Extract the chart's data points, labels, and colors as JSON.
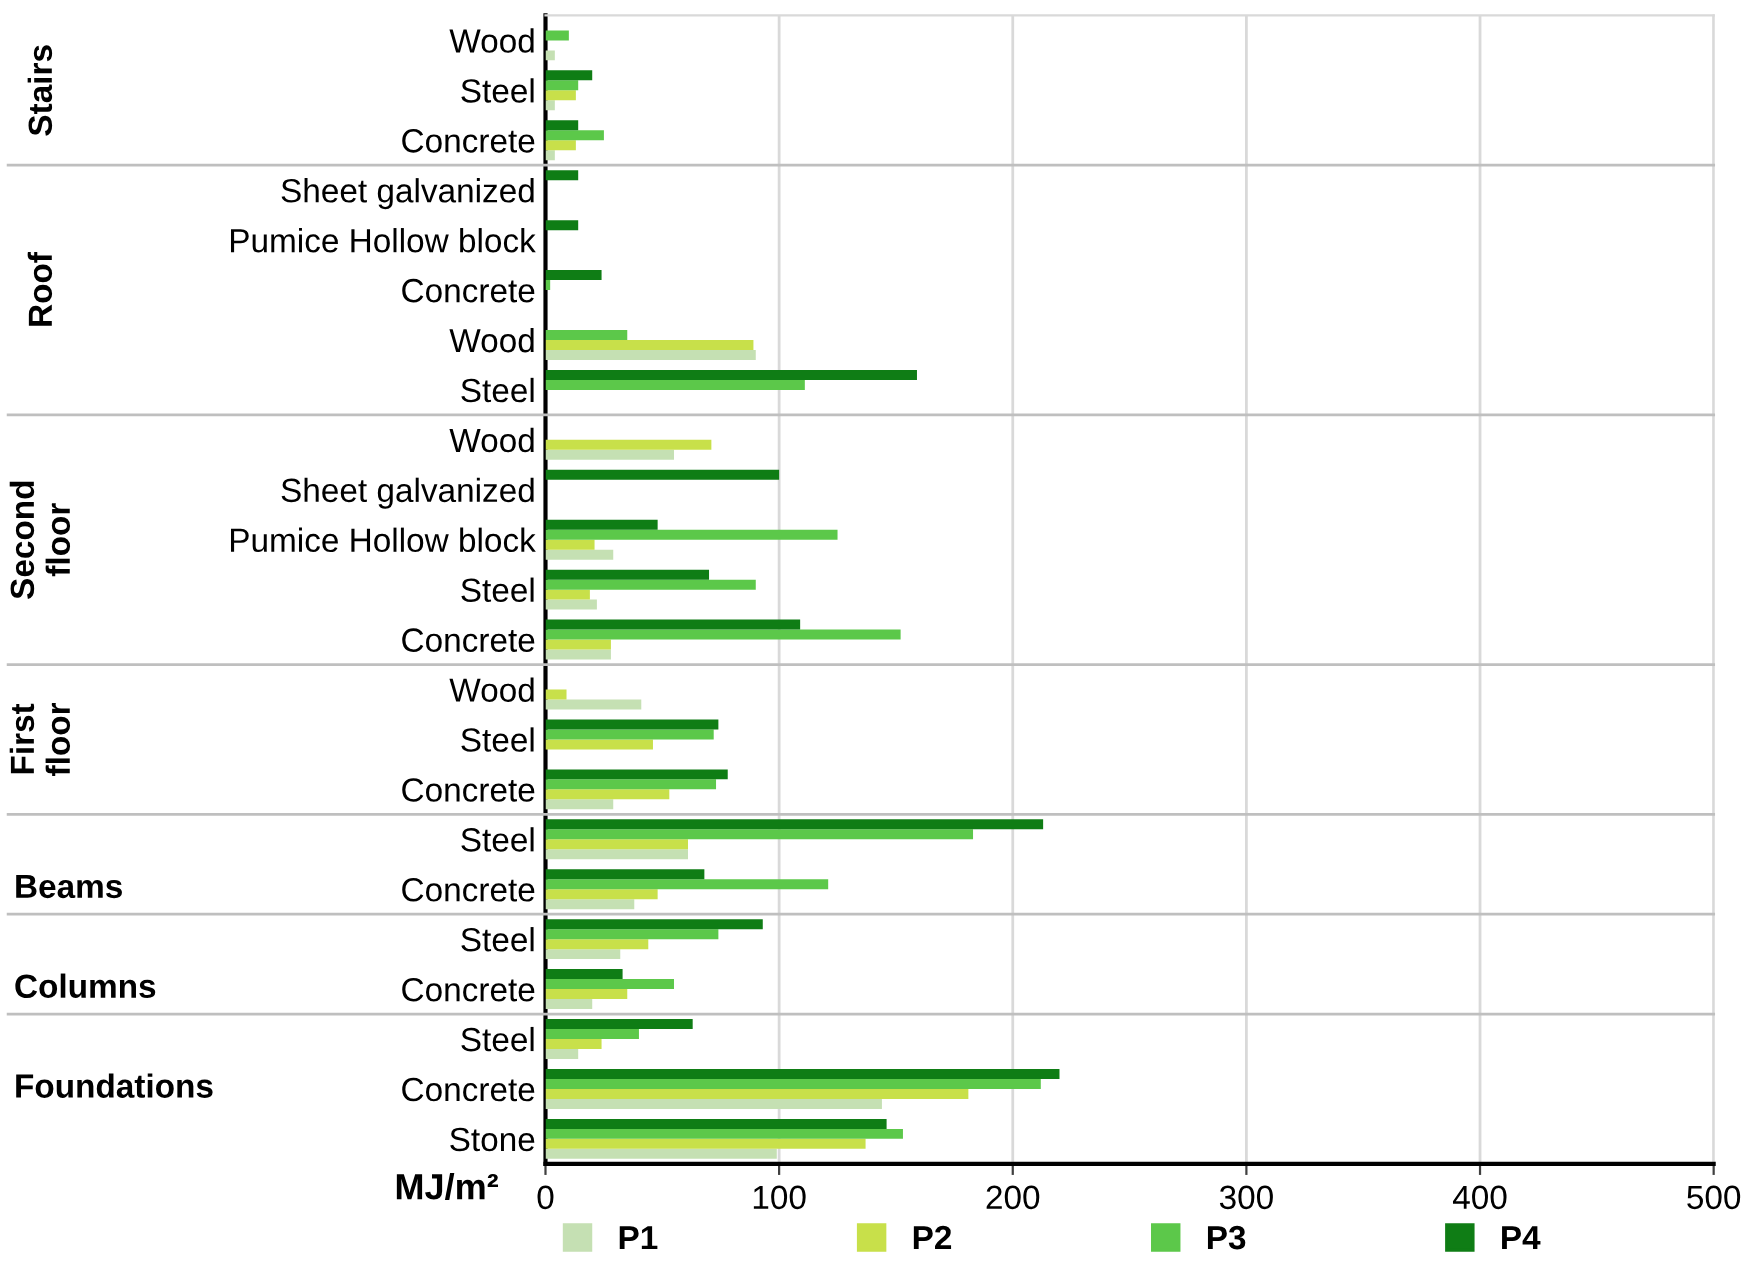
{
  "chart_data": {
    "type": "bar",
    "orientation": "horizontal",
    "categories": [
      "Wood",
      "Steel",
      "Concrete",
      "Sheet galvanized",
      "Pumice Hollow block",
      "Concrete",
      "Wood",
      "Steel",
      "Wood",
      "Sheet galvanized",
      "Pumice Hollow block",
      "Steel",
      "Concrete",
      "Wood",
      "Steel",
      "Concrete",
      "Steel",
      "Concrete",
      "Steel",
      "Concrete",
      "Steel",
      "Concrete",
      "Stone"
    ],
    "series": [
      {
        "name": "P1",
        "color": "#c5e0b3",
        "values": [
          4,
          4,
          4,
          0,
          0,
          0,
          90,
          0,
          55,
          0,
          29,
          22,
          28,
          41,
          0,
          29,
          61,
          38,
          32,
          20,
          14,
          144,
          99
        ]
      },
      {
        "name": "P2",
        "color": "#c8e04a",
        "values": [
          0,
          13,
          13,
          0,
          0,
          0,
          89,
          0,
          71,
          0,
          21,
          19,
          28,
          9,
          46,
          53,
          61,
          48,
          44,
          35,
          24,
          181,
          137
        ]
      },
      {
        "name": "P3",
        "color": "#5cc84a",
        "values": [
          10,
          14,
          25,
          0,
          0,
          2,
          35,
          111,
          0,
          0,
          125,
          90,
          152,
          0,
          72,
          73,
          183,
          121,
          74,
          55,
          40,
          212,
          153
        ]
      },
      {
        "name": "P4",
        "color": "#0f7d15",
        "values": [
          0,
          20,
          14,
          14,
          14,
          24,
          0,
          159,
          0,
          100,
          48,
          70,
          109,
          0,
          74,
          78,
          213,
          68,
          93,
          33,
          63,
          220,
          146
        ]
      }
    ],
    "xlabel": "MJ/m²",
    "xlim": [
      0,
      500
    ],
    "xticks": [
      0,
      100,
      200,
      300,
      400,
      500
    ],
    "grid": "x",
    "legend": "bottom",
    "annotations": [
      "Stairs",
      "Roof",
      "Second floor",
      "First floor",
      "Beams",
      "Columns",
      "Foundations"
    ]
  }
}
